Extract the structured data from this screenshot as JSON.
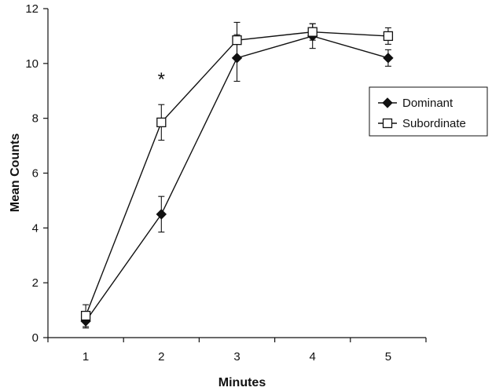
{
  "chart_data": {
    "type": "line",
    "title": "",
    "xlabel": "Minutes",
    "ylabel": "Mean Counts",
    "x": [
      1,
      2,
      3,
      4,
      5
    ],
    "xlim": [
      0.5,
      5.5
    ],
    "ylim": [
      0,
      12
    ],
    "yticks": [
      0,
      2,
      4,
      6,
      8,
      10,
      12
    ],
    "grid": false,
    "legend_position": "right",
    "series": [
      {
        "name": "Dominant",
        "marker": "filled-diamond",
        "color": "#111111",
        "values": [
          0.6,
          4.5,
          10.2,
          11.0,
          10.2
        ],
        "error": [
          0.25,
          0.65,
          0.85,
          0.45,
          0.3
        ]
      },
      {
        "name": "Subordinate",
        "marker": "open-square",
        "color": "#111111",
        "values": [
          0.8,
          7.85,
          10.85,
          11.15,
          11.0
        ],
        "error": [
          0.4,
          0.65,
          0.65,
          0.3,
          0.3
        ]
      }
    ],
    "annotations": [
      {
        "text": "*",
        "x": 2,
        "y": 9.6
      }
    ]
  }
}
